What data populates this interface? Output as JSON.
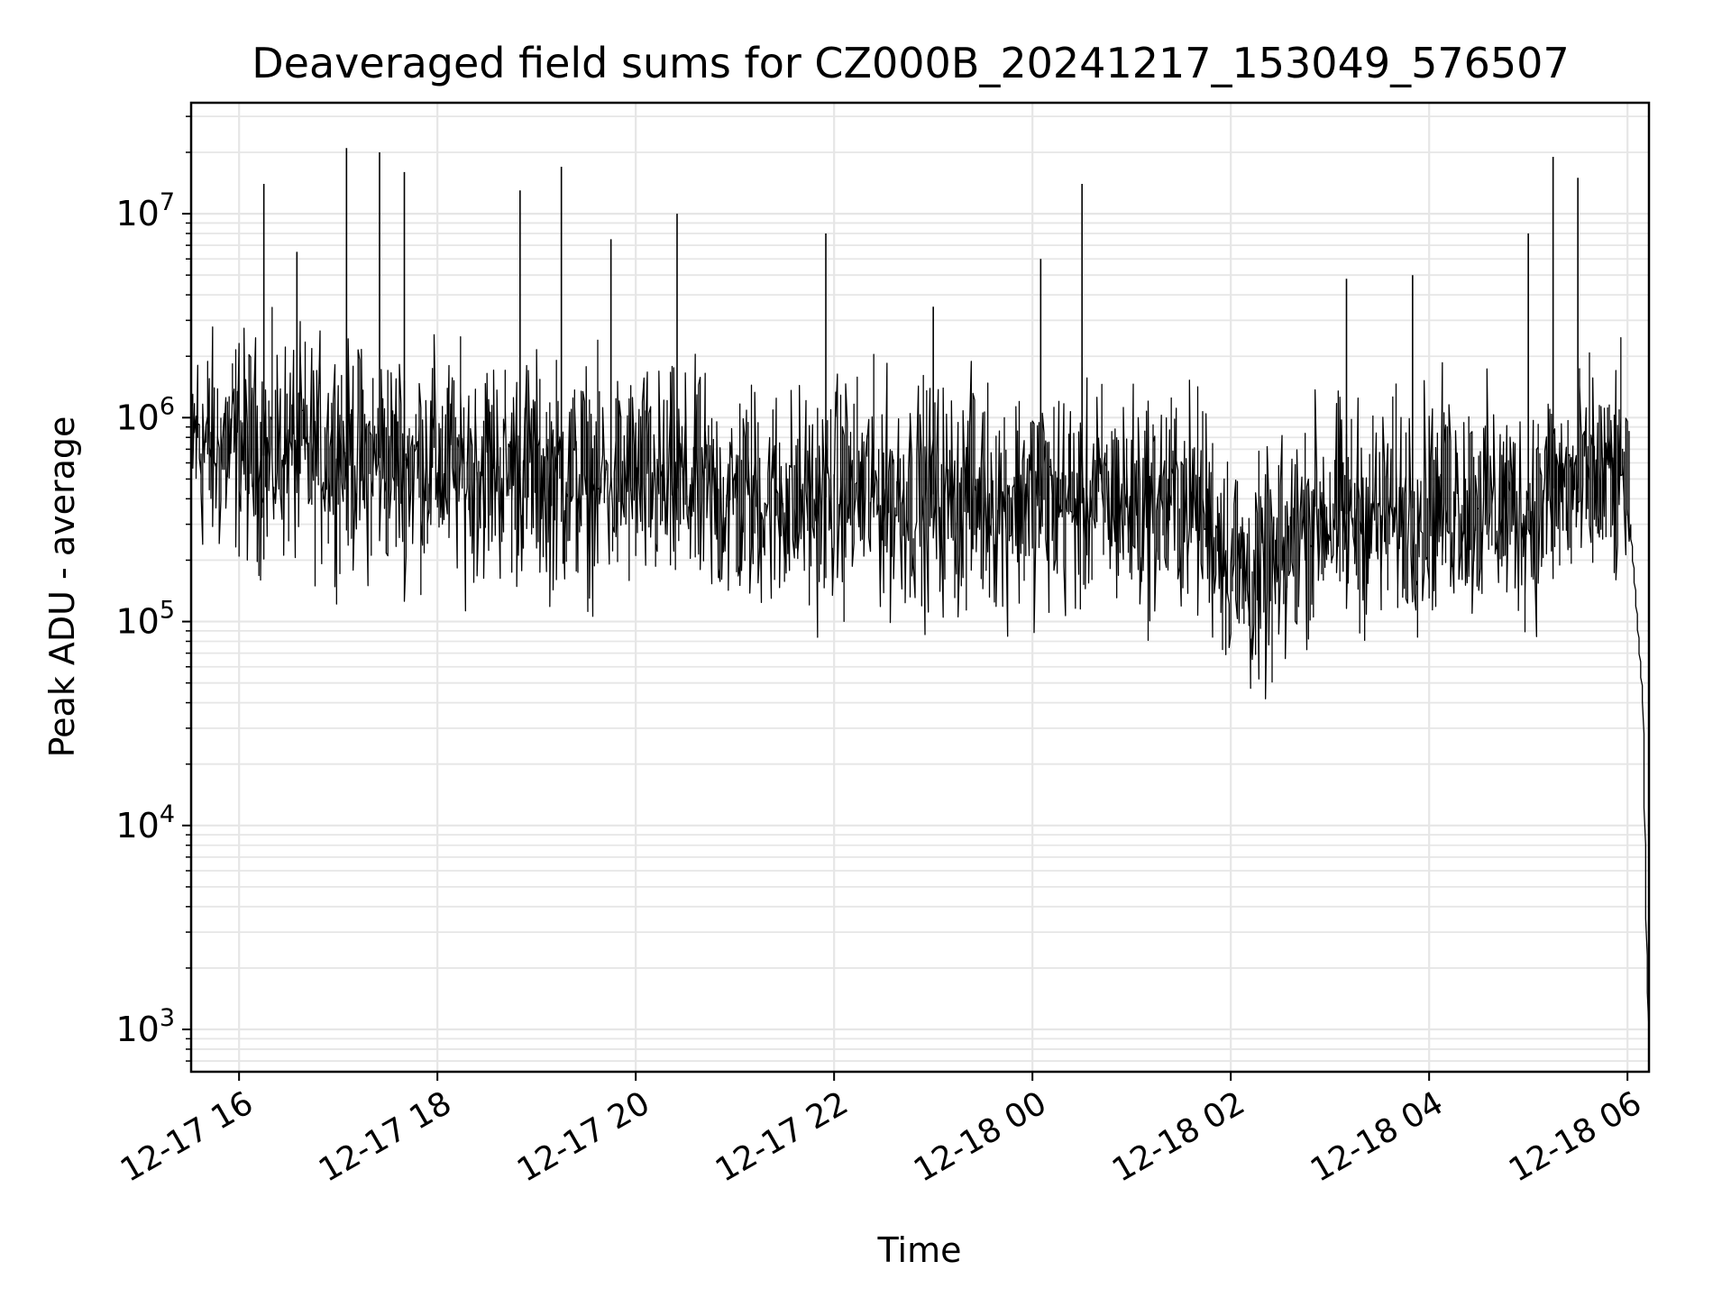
{
  "chart_data": {
    "type": "line",
    "title": "Deaveraged field sums for CZ000B_20241217_153049_576507",
    "xlabel": "Time",
    "ylabel": "Peak ADU - average",
    "yscale": "log",
    "ylim": [
      620,
      35000000
    ],
    "xlim": [
      "2024-12-17 15:31",
      "2024-12-18 06:13"
    ],
    "grid": true,
    "line_color": "#000000",
    "grid_color": "#e6e6e6",
    "x_ticks": [
      "12-17 16",
      "12-17 18",
      "12-17 20",
      "12-17 22",
      "12-18 00",
      "12-18 02",
      "12-18 04",
      "12-18 06"
    ],
    "y_ticks": [
      {
        "base": "10",
        "exp": "3",
        "value": 1000
      },
      {
        "base": "10",
        "exp": "4",
        "value": 10000
      },
      {
        "base": "10",
        "exp": "5",
        "value": 100000
      },
      {
        "base": "10",
        "exp": "6",
        "value": 1000000
      },
      {
        "base": "10",
        "exp": "7",
        "value": 10000000
      }
    ],
    "series": [
      {
        "x": [
          "2024-12-17 15:31",
          "2024-12-17 15:45",
          "2024-12-17 16:00",
          "2024-12-17 16:15",
          "2024-12-17 16:30",
          "2024-12-17 16:45",
          "2024-12-17 17:00",
          "2024-12-17 17:15",
          "2024-12-17 17:30",
          "2024-12-17 17:45",
          "2024-12-17 18:00",
          "2024-12-17 18:15",
          "2024-12-17 18:30",
          "2024-12-17 18:45",
          "2024-12-17 19:00",
          "2024-12-17 19:15",
          "2024-12-17 19:30",
          "2024-12-17 19:45",
          "2024-12-17 20:00",
          "2024-12-17 20:15",
          "2024-12-17 20:30",
          "2024-12-17 20:45",
          "2024-12-17 21:00",
          "2024-12-17 21:15",
          "2024-12-17 21:30",
          "2024-12-17 21:45",
          "2024-12-17 22:00",
          "2024-12-17 22:15",
          "2024-12-17 22:30",
          "2024-12-17 22:45",
          "2024-12-17 23:00",
          "2024-12-17 23:15",
          "2024-12-17 23:30",
          "2024-12-17 23:45",
          "2024-12-18 00:00",
          "2024-12-18 00:15",
          "2024-12-18 00:30",
          "2024-12-18 00:45",
          "2024-12-18 01:00",
          "2024-12-18 01:15",
          "2024-12-18 01:30",
          "2024-12-18 01:45",
          "2024-12-18 02:00",
          "2024-12-18 02:15",
          "2024-12-18 02:30",
          "2024-12-18 02:45",
          "2024-12-18 03:00",
          "2024-12-18 03:15",
          "2024-12-18 03:30",
          "2024-12-18 03:45",
          "2024-12-18 04:00",
          "2024-12-18 04:15",
          "2024-12-18 04:30",
          "2024-12-18 04:45",
          "2024-12-18 05:00",
          "2024-12-18 05:15",
          "2024-12-18 05:30",
          "2024-12-18 05:45",
          "2024-12-18 06:00",
          "2024-12-18 06:05",
          "2024-12-18 06:10",
          "2024-12-18 06:13"
        ],
        "y": [
          800000,
          700000,
          750000,
          650000,
          700000,
          650000,
          700000,
          600000,
          650000,
          600000,
          600000,
          550000,
          600000,
          550000,
          550000,
          500000,
          500000,
          480000,
          500000,
          450000,
          450000,
          420000,
          400000,
          420000,
          400000,
          380000,
          420000,
          450000,
          420000,
          400000,
          420000,
          400000,
          420000,
          400000,
          420000,
          400000,
          380000,
          400000,
          380000,
          380000,
          400000,
          350000,
          200000,
          150000,
          180000,
          300000,
          350000,
          330000,
          330000,
          350000,
          380000,
          400000,
          380000,
          350000,
          350000,
          450000,
          450000,
          500000,
          500000,
          150000,
          40000,
          1000
        ],
        "spikes": [
          {
            "x": "2024-12-17 16:15",
            "y": 14000000
          },
          {
            "x": "2024-12-17 16:35",
            "y": 6500000
          },
          {
            "x": "2024-12-17 17:05",
            "y": 21000000
          },
          {
            "x": "2024-12-17 17:25",
            "y": 20000000
          },
          {
            "x": "2024-12-17 17:40",
            "y": 16000000
          },
          {
            "x": "2024-12-17 18:50",
            "y": 13000000
          },
          {
            "x": "2024-12-17 19:15",
            "y": 17000000
          },
          {
            "x": "2024-12-17 19:45",
            "y": 7500000
          },
          {
            "x": "2024-12-17 20:25",
            "y": 10000000
          },
          {
            "x": "2024-12-17 21:55",
            "y": 8000000
          },
          {
            "x": "2024-12-17 23:00",
            "y": 3500000
          },
          {
            "x": "2024-12-18 00:05",
            "y": 6000000
          },
          {
            "x": "2024-12-18 00:30",
            "y": 14000000
          },
          {
            "x": "2024-12-18 03:10",
            "y": 4800000
          },
          {
            "x": "2024-12-18 03:50",
            "y": 5000000
          },
          {
            "x": "2024-12-18 05:00",
            "y": 8000000
          },
          {
            "x": "2024-12-18 05:15",
            "y": 19000000
          },
          {
            "x": "2024-12-18 05:30",
            "y": 15000000
          }
        ]
      }
    ]
  }
}
